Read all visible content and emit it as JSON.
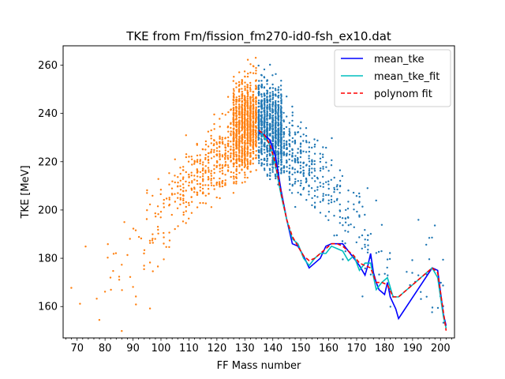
{
  "chart_data": {
    "type": "scatter",
    "title": "TKE from  Fm/fission_fm270-id0-fsh_ex10.dat",
    "xlabel": "FF Mass number",
    "ylabel": "TKE [MeV]",
    "xlim": [
      65,
      205
    ],
    "ylim": [
      147,
      268
    ],
    "xticks": [
      70,
      80,
      90,
      100,
      110,
      120,
      130,
      140,
      150,
      160,
      170,
      180,
      190,
      200
    ],
    "yticks": [
      160,
      180,
      200,
      220,
      240,
      260
    ],
    "legend_position": "top-right",
    "grid": false,
    "colors": {
      "light_fragments": "#ff7f0e",
      "heavy_fragments": "#1f77b4",
      "mean_tke": "#0000ff",
      "mean_tke_fit": "#00bfbf",
      "polynom_fit": "#ff0000"
    },
    "scatter_series": [
      {
        "key": "light_fragments",
        "x_range": [
          68,
          135
        ],
        "peak_x": 133,
        "note": "dense column of points at A~125-135, TKE 215-262; sparse tail to low masses"
      },
      {
        "key": "heavy_fragments",
        "x_range": [
          135,
          202
        ],
        "peak_x": 137,
        "note": "mirror of light fragments"
      }
    ],
    "series": [
      {
        "name": "mean_tke",
        "style": "solid",
        "x": [
          135,
          137,
          139,
          141,
          143,
          145,
          147,
          149,
          151,
          153,
          155,
          157,
          159,
          161,
          163,
          165,
          167,
          169,
          171,
          173,
          174,
          175,
          176,
          177,
          178,
          179,
          180,
          181,
          182,
          184,
          185,
          197,
          199,
          201,
          202
        ],
        "y": [
          232,
          231,
          229,
          222,
          208,
          196,
          186,
          185,
          181,
          176,
          178,
          180,
          185,
          186,
          186,
          186,
          183,
          180,
          177,
          173,
          177,
          182,
          174,
          170,
          167,
          166,
          165,
          170,
          164,
          159,
          155,
          176,
          175,
          157,
          152
        ]
      },
      {
        "name": "mean_tke_fit",
        "style": "solid",
        "x": [
          135,
          137,
          139,
          141,
          143,
          145,
          147,
          149,
          151,
          153,
          155,
          157,
          159,
          161,
          163,
          165,
          167,
          169,
          171,
          173,
          175,
          177,
          179,
          181,
          183,
          185,
          197,
          199,
          201,
          202
        ],
        "y": [
          233,
          230,
          227,
          218,
          206,
          196,
          188,
          186,
          180,
          177,
          180,
          182,
          182,
          185,
          184,
          183,
          179,
          181,
          175,
          178,
          178,
          167,
          170,
          172,
          164,
          164,
          176,
          172,
          156,
          151
        ]
      },
      {
        "name": "polynom fit",
        "style": "dashed",
        "x": [
          135,
          137,
          139,
          141,
          143,
          145,
          147,
          149,
          151,
          153,
          155,
          157,
          159,
          161,
          163,
          165,
          167,
          169,
          171,
          173,
          175,
          177,
          179,
          181,
          183,
          185,
          197,
          199,
          201,
          202
        ],
        "y": [
          233,
          231,
          227,
          219,
          207,
          196,
          189,
          185,
          181,
          179,
          180,
          182,
          184,
          186,
          186,
          185,
          183,
          181,
          178,
          177,
          176,
          170,
          170,
          169,
          164,
          164,
          176,
          174,
          158,
          150
        ]
      }
    ]
  }
}
